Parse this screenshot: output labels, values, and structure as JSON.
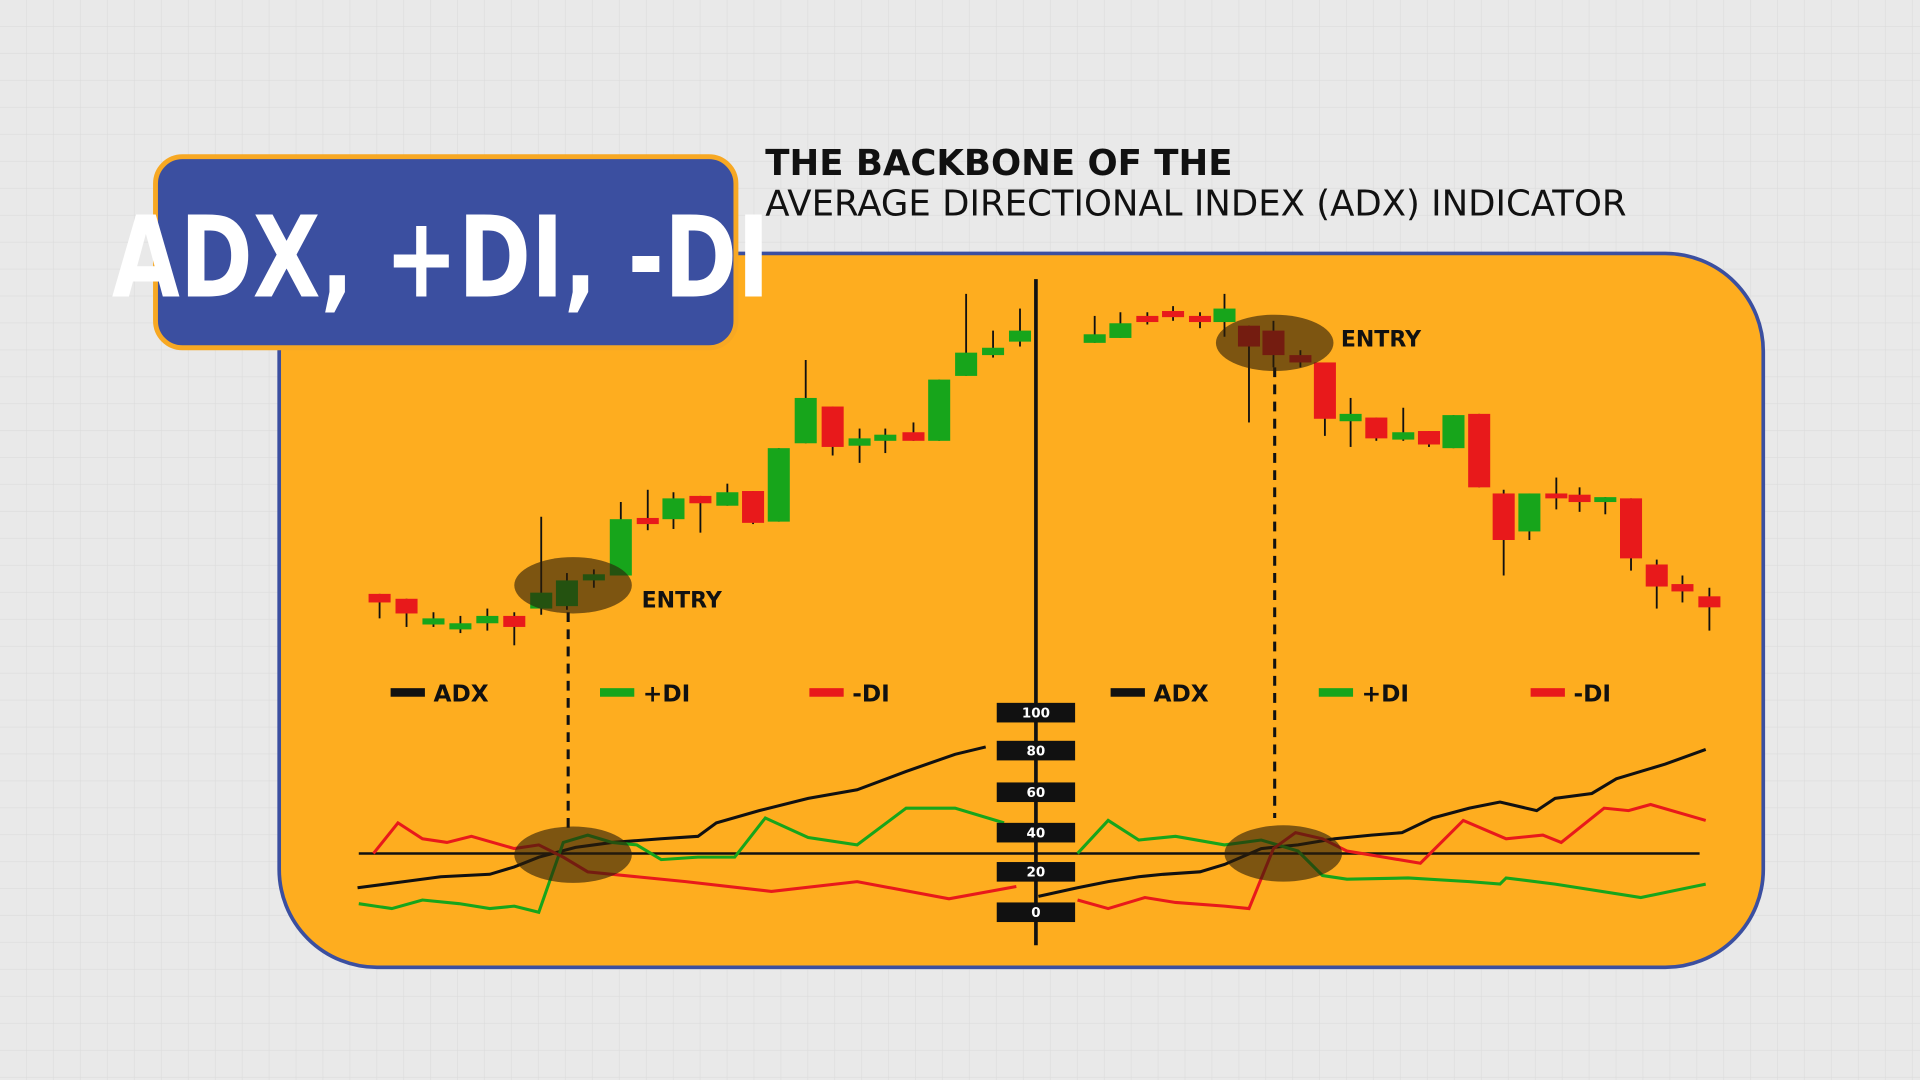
{
  "header": {
    "title": "ADX, +DI, -DI",
    "subtitle_lines": [
      "THE BACKBONE OF THE",
      "AVERAGE DIRECTIONAL INDEX (ADX) INDICATOR"
    ]
  },
  "panels": [
    {
      "entry_label": "ENTRY",
      "legend": [
        "ADX",
        "+DI",
        "-DI"
      ]
    },
    {
      "entry_label": "ENTRY",
      "legend": [
        "ADX",
        "+DI",
        "-DI"
      ]
    }
  ],
  "scale_labels": [
    100,
    80,
    60,
    40,
    20,
    0
  ]
}
